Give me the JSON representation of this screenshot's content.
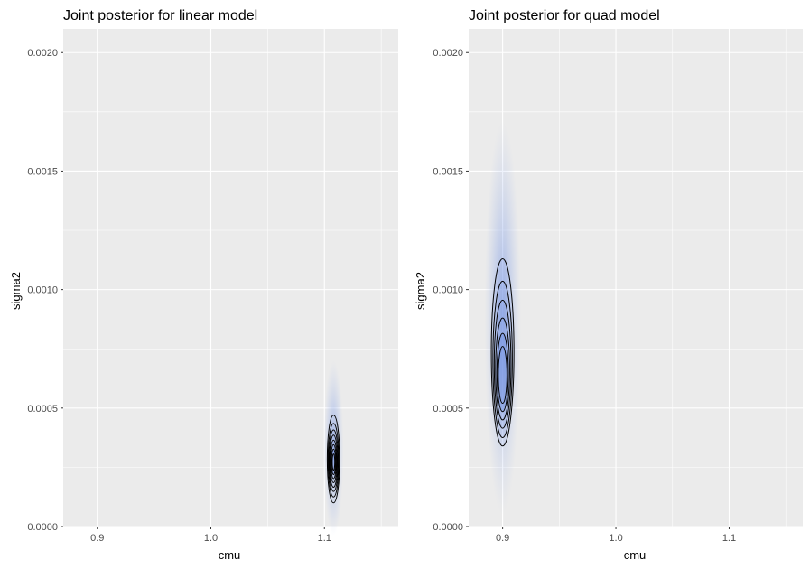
{
  "chart_data": [
    {
      "type": "contour",
      "title": "Joint posterior for linear model",
      "xlabel": "cmu",
      "ylabel": "sigma2",
      "xlim": [
        0.87,
        1.165
      ],
      "ylim": [
        0,
        0.0021
      ],
      "x_ticks": [
        "0.9",
        "1.0",
        "1.1"
      ],
      "x_tick_values": [
        0.9,
        1.0,
        1.1
      ],
      "y_ticks": [
        "0.0000",
        "0.0005",
        "0.0010",
        "0.0015",
        "0.0020"
      ],
      "y_tick_values": [
        0,
        0.0005,
        0.001,
        0.0015,
        0.002
      ],
      "grid": true,
      "density_center": {
        "cmu": 1.108,
        "sigma2": 0.00028
      },
      "contours": [
        {
          "half_width": 0.0055,
          "half_height": 0.000185,
          "center_sigma2": 0.000285
        },
        {
          "half_width": 0.0048,
          "half_height": 0.000155,
          "center_sigma2": 0.00028
        },
        {
          "half_width": 0.0042,
          "half_height": 0.00013,
          "center_sigma2": 0.000278
        },
        {
          "half_width": 0.0036,
          "half_height": 0.00011,
          "center_sigma2": 0.000276
        },
        {
          "half_width": 0.003,
          "half_height": 9e-05,
          "center_sigma2": 0.000275
        },
        {
          "half_width": 0.0024,
          "half_height": 7.2e-05,
          "center_sigma2": 0.000274
        },
        {
          "half_width": 0.0018,
          "half_height": 5.4e-05,
          "center_sigma2": 0.000273
        },
        {
          "half_width": 0.0011,
          "half_height": 3.5e-05,
          "center_sigma2": 0.000272
        }
      ]
    },
    {
      "type": "contour",
      "title": "Joint posterior for quad model",
      "xlabel": "cmu",
      "ylabel": "sigma2",
      "xlim": [
        0.87,
        1.165
      ],
      "ylim": [
        0,
        0.0021
      ],
      "x_ticks": [
        "0.9",
        "1.0",
        "1.1"
      ],
      "x_tick_values": [
        0.9,
        1.0,
        1.1
      ],
      "y_ticks": [
        "0.0000",
        "0.0005",
        "0.0010",
        "0.0015",
        "0.0020"
      ],
      "y_tick_values": [
        0,
        0.0005,
        0.001,
        0.0015,
        0.002
      ],
      "grid": true,
      "density_center": {
        "cmu": 0.9,
        "sigma2": 0.00063
      },
      "contours": [
        {
          "half_width": 0.01,
          "half_height": 0.000395,
          "center_sigma2": 0.000735
        },
        {
          "half_width": 0.0086,
          "half_height": 0.00033,
          "center_sigma2": 0.000705
        },
        {
          "half_width": 0.0074,
          "half_height": 0.00027,
          "center_sigma2": 0.000685
        },
        {
          "half_width": 0.0062,
          "half_height": 0.000215,
          "center_sigma2": 0.000665
        },
        {
          "half_width": 0.005,
          "half_height": 0.000165,
          "center_sigma2": 0.00065
        },
        {
          "half_width": 0.0038,
          "half_height": 0.00012,
          "center_sigma2": 0.00064
        }
      ]
    }
  ]
}
